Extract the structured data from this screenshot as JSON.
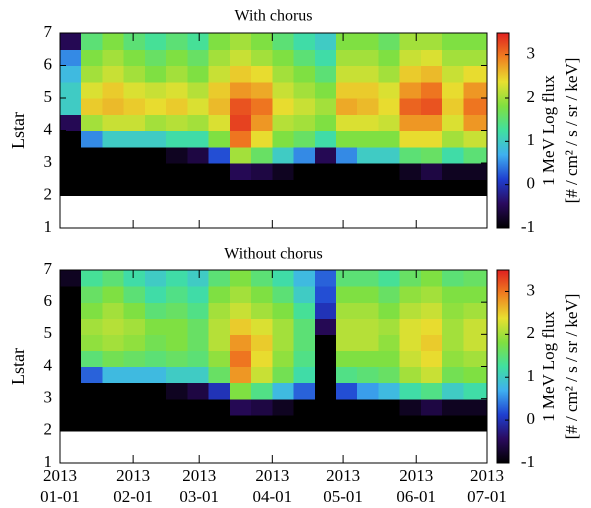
{
  "chart_data": [
    {
      "type": "heatmap",
      "title": "With chorus",
      "ylabel": "Lstar",
      "colorbar_label": [
        "1 MeV Log flux",
        "[# / cm² / s / sr / keV]"
      ],
      "x": [
        "2013-01-01",
        "2013-01-10",
        "2013-01-19",
        "2013-01-28",
        "2013-02-06",
        "2013-02-15",
        "2013-02-24",
        "2013-03-05",
        "2013-03-14",
        "2013-03-23",
        "2013-04-01",
        "2013-04-10",
        "2013-04-19",
        "2013-04-28",
        "2013-05-07",
        "2013-05-16",
        "2013-05-25",
        "2013-06-03",
        "2013-06-12",
        "2013-06-21"
      ],
      "y": [
        2.25,
        2.75,
        3.25,
        3.75,
        4.25,
        4.75,
        5.25,
        5.75,
        6.25,
        6.75
      ],
      "z": [
        [
          -1,
          -1,
          -1,
          -1,
          -1,
          -1,
          -1,
          -1,
          -1,
          -1,
          -1,
          -1,
          -1,
          -1,
          -1,
          -1,
          -1,
          -1,
          -1,
          -1
        ],
        [
          -1,
          -1,
          -1,
          -1,
          -1,
          -1,
          -1,
          -1,
          -0.5,
          -0.6,
          -0.8,
          -1,
          -1,
          -1,
          -1,
          -1,
          -0.8,
          -0.6,
          -0.8,
          -0.8
        ],
        [
          -1,
          -1,
          -1,
          -1,
          -1,
          -0.8,
          -0.6,
          0.2,
          2.0,
          1.6,
          1.0,
          0.5,
          -0.5,
          0.5,
          1.0,
          1.0,
          1.5,
          1.6,
          1.2,
          1.5
        ],
        [
          -1,
          0.5,
          1.0,
          1.0,
          1.0,
          1.2,
          1.2,
          1.8,
          3.0,
          2.4,
          1.8,
          1.6,
          1.2,
          1.8,
          1.8,
          1.8,
          2.4,
          2.4,
          2.0,
          2.2
        ],
        [
          -0.5,
          2.0,
          2.2,
          2.2,
          2.0,
          2.1,
          2.0,
          2.3,
          3.3,
          2.8,
          2.1,
          2.0,
          1.8,
          2.3,
          2.3,
          2.2,
          2.8,
          2.8,
          2.3,
          2.8
        ],
        [
          1.0,
          2.5,
          2.6,
          2.5,
          2.4,
          2.5,
          2.3,
          2.6,
          3.2,
          3.0,
          2.4,
          2.2,
          2.0,
          2.7,
          2.6,
          2.4,
          3.1,
          3.2,
          2.5,
          3.0
        ],
        [
          1.0,
          2.3,
          2.5,
          2.3,
          2.2,
          2.3,
          2.1,
          2.5,
          2.8,
          2.7,
          2.2,
          2.0,
          1.8,
          2.5,
          2.5,
          2.3,
          2.8,
          3.0,
          2.4,
          2.8
        ],
        [
          0.8,
          2.0,
          2.2,
          2.0,
          1.8,
          2.0,
          1.8,
          2.2,
          2.5,
          2.4,
          2.0,
          1.8,
          1.5,
          2.2,
          2.2,
          2.0,
          2.5,
          2.6,
          2.2,
          2.4
        ],
        [
          0.5,
          1.8,
          2.0,
          1.8,
          1.6,
          1.8,
          1.6,
          2.0,
          2.2,
          2.0,
          1.8,
          1.5,
          1.2,
          2.0,
          2.0,
          1.8,
          2.2,
          2.3,
          2.0,
          2.0
        ],
        [
          -0.5,
          1.5,
          1.8,
          1.5,
          1.3,
          1.5,
          1.3,
          1.8,
          2.0,
          1.8,
          1.5,
          1.2,
          1.0,
          1.8,
          1.8,
          1.6,
          2.0,
          2.0,
          1.8,
          1.8
        ]
      ],
      "xlim": [
        "2013-01-01",
        "2013-07-01"
      ],
      "ylim": [
        1,
        7
      ],
      "yticks": [
        1,
        2,
        3,
        4,
        5,
        6,
        7
      ],
      "zlim": [
        -1,
        3.5
      ],
      "zticks": [
        -1,
        0,
        1,
        2,
        3
      ],
      "colorscale": [
        "#000000",
        "#2a0a5e",
        "#1f3fd0",
        "#3fb0f0",
        "#40e0a0",
        "#80e040",
        "#e8e030",
        "#f08020",
        "#e02020"
      ]
    },
    {
      "type": "heatmap",
      "title": "Without chorus",
      "ylabel": "Lstar",
      "colorbar_label": [
        "1 MeV Log flux",
        "[# / cm² / s / sr / keV]"
      ],
      "x": [
        "2013-01-01",
        "2013-01-10",
        "2013-01-19",
        "2013-01-28",
        "2013-02-06",
        "2013-02-15",
        "2013-02-24",
        "2013-03-05",
        "2013-03-14",
        "2013-03-23",
        "2013-04-01",
        "2013-04-10",
        "2013-04-19",
        "2013-04-28",
        "2013-05-07",
        "2013-05-16",
        "2013-05-25",
        "2013-06-03",
        "2013-06-12",
        "2013-06-21"
      ],
      "y": [
        2.25,
        2.75,
        3.25,
        3.75,
        4.25,
        4.75,
        5.25,
        5.75,
        6.25,
        6.75
      ],
      "z": [
        [
          -1,
          -1,
          -1,
          -1,
          -1,
          -1,
          -1,
          -1,
          -1,
          -1,
          -1,
          -1,
          -1,
          -1,
          -1,
          -1,
          -1,
          -1,
          -1,
          -1
        ],
        [
          -1,
          -1,
          -1,
          -1,
          -1,
          -1,
          -1,
          -1,
          -0.5,
          -0.6,
          -0.8,
          -1,
          -1,
          -1,
          -1,
          -1,
          -0.8,
          -0.6,
          -0.8,
          -0.8
        ],
        [
          -1,
          -1,
          -1,
          -1,
          -1,
          -0.8,
          -0.6,
          0,
          1.8,
          1.4,
          0.8,
          0.3,
          -1,
          0.2,
          0.6,
          0.8,
          1.2,
          1.4,
          1.0,
          1.2
        ],
        [
          -1,
          0.3,
          0.8,
          0.8,
          0.8,
          1.0,
          1.0,
          1.6,
          2.8,
          2.2,
          1.7,
          1.2,
          -1,
          1.4,
          1.5,
          1.6,
          2.0,
          2.2,
          1.7,
          1.8
        ],
        [
          -1,
          1.5,
          1.7,
          1.6,
          1.5,
          1.6,
          1.5,
          1.9,
          3.0,
          2.4,
          1.9,
          1.4,
          -1,
          1.8,
          1.8,
          1.8,
          2.2,
          2.4,
          1.9,
          2.0
        ],
        [
          -1,
          1.9,
          2.0,
          1.9,
          1.7,
          1.8,
          1.6,
          2.1,
          2.8,
          2.5,
          2.0,
          1.5,
          -1,
          2.1,
          2.1,
          1.9,
          2.3,
          2.5,
          2.0,
          2.2
        ],
        [
          -1,
          2.0,
          2.1,
          2.0,
          1.8,
          1.8,
          1.6,
          2.1,
          2.5,
          2.3,
          2.0,
          1.5,
          -0.5,
          2.1,
          2.1,
          2.0,
          2.3,
          2.4,
          2.0,
          2.2
        ],
        [
          -1,
          1.8,
          2.0,
          1.8,
          1.5,
          1.6,
          1.4,
          2.0,
          2.2,
          2.0,
          1.8,
          1.3,
          0,
          2.0,
          2.0,
          1.8,
          2.1,
          2.2,
          1.9,
          2.0
        ],
        [
          -1,
          1.6,
          1.8,
          1.5,
          1.2,
          1.4,
          1.2,
          1.8,
          2.0,
          1.8,
          1.5,
          1.0,
          0.2,
          1.8,
          1.8,
          1.6,
          1.9,
          2.0,
          1.8,
          1.8
        ],
        [
          -0.8,
          1.3,
          1.5,
          1.2,
          1.0,
          1.2,
          1.0,
          1.5,
          1.8,
          1.5,
          1.2,
          0.8,
          0.3,
          1.5,
          1.5,
          1.3,
          1.6,
          1.8,
          1.5,
          1.6
        ]
      ],
      "xlim": [
        "2013-01-01",
        "2013-07-01"
      ],
      "ylim": [
        1,
        7
      ],
      "yticks": [
        1,
        2,
        3,
        4,
        5,
        6,
        7
      ],
      "xticks": [
        {
          "value": "2013-01-01",
          "label": [
            "2013",
            "01-01"
          ]
        },
        {
          "value": "2013-02-01",
          "label": [
            "2013",
            "02-01"
          ]
        },
        {
          "value": "2013-03-01",
          "label": [
            "2013",
            "03-01"
          ]
        },
        {
          "value": "2013-04-01",
          "label": [
            "2013",
            "04-01"
          ]
        },
        {
          "value": "2013-05-01",
          "label": [
            "2013",
            "05-01"
          ]
        },
        {
          "value": "2013-06-01",
          "label": [
            "2013",
            "06-01"
          ]
        },
        {
          "value": "2013-07-01",
          "label": [
            "2013",
            "07-01"
          ]
        }
      ],
      "zlim": [
        -1,
        3.5
      ],
      "zticks": [
        -1,
        0,
        1,
        2,
        3
      ],
      "colorscale": [
        "#000000",
        "#2a0a5e",
        "#1f3fd0",
        "#3fb0f0",
        "#40e0a0",
        "#80e040",
        "#e8e030",
        "#f08020",
        "#e02020"
      ]
    }
  ]
}
